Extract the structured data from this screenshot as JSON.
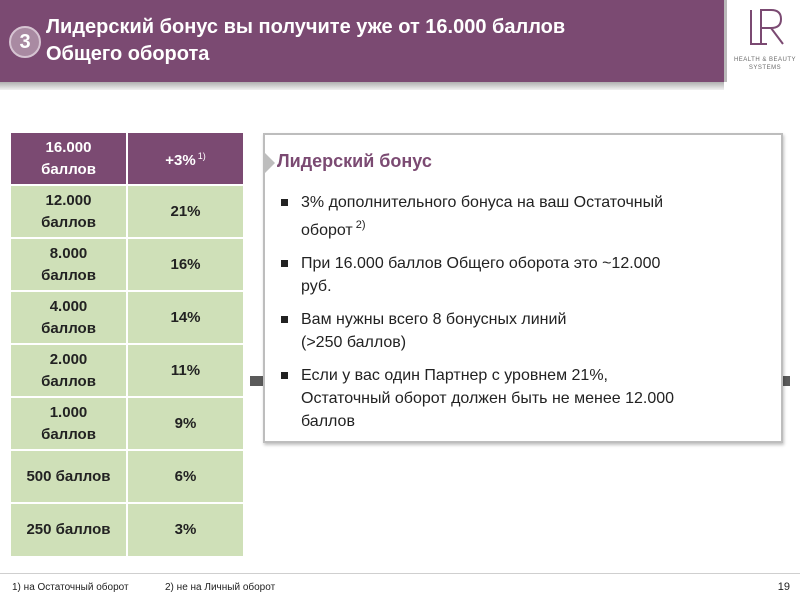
{
  "header": {
    "step_number": "3",
    "title_line1": "Лидерский бонус вы получите уже от 16.000 баллов",
    "title_line2": "Общего оборота",
    "accent_color": "#7b4a72"
  },
  "logo": {
    "mark": "LR",
    "tagline": "HEALTH & BEAUTY SYSTEMS"
  },
  "table": {
    "rows": [
      {
        "points_line1": "16.000",
        "points_line2": "баллов",
        "percent": "+3%",
        "note": "1)",
        "is_header": true
      },
      {
        "points_line1": "12.000",
        "points_line2": "баллов",
        "percent": "21%"
      },
      {
        "points_line1": "8.000",
        "points_line2": "баллов",
        "percent": "16%"
      },
      {
        "points_line1": "4.000",
        "points_line2": "баллов",
        "percent": "14%"
      },
      {
        "points_line1": "2.000",
        "points_line2": "баллов",
        "percent": "11%"
      },
      {
        "points_line1": "1.000",
        "points_line2": "баллов",
        "percent": "9%"
      },
      {
        "points_line1": "500 баллов",
        "points_line2": "",
        "percent": "6%"
      },
      {
        "points_line1": "250 баллов",
        "points_line2": "",
        "percent": "3%"
      }
    ]
  },
  "info": {
    "title": "Лидерский бонус",
    "bullets": [
      {
        "text_a": "3% дополнительного бонуса на ваш Остаточный",
        "text_b": "оборот",
        "note": "2)"
      },
      {
        "text_a": "При 16.000 баллов Общего оборота это ~12.000",
        "text_b": "руб."
      },
      {
        "text_a": "Вам нужны всего 8 бонусных линий",
        "text_b": "(>250 баллов)"
      },
      {
        "text_a": "Если у вас один Партнер с уровнем 21%,",
        "text_b": "Остаточный оборот должен быть не менее 12.000",
        "text_c": "баллов"
      }
    ]
  },
  "footer": {
    "note1": "1)  на Остаточный оборот",
    "note2": "2) не на Личный оборот",
    "page": "19"
  }
}
